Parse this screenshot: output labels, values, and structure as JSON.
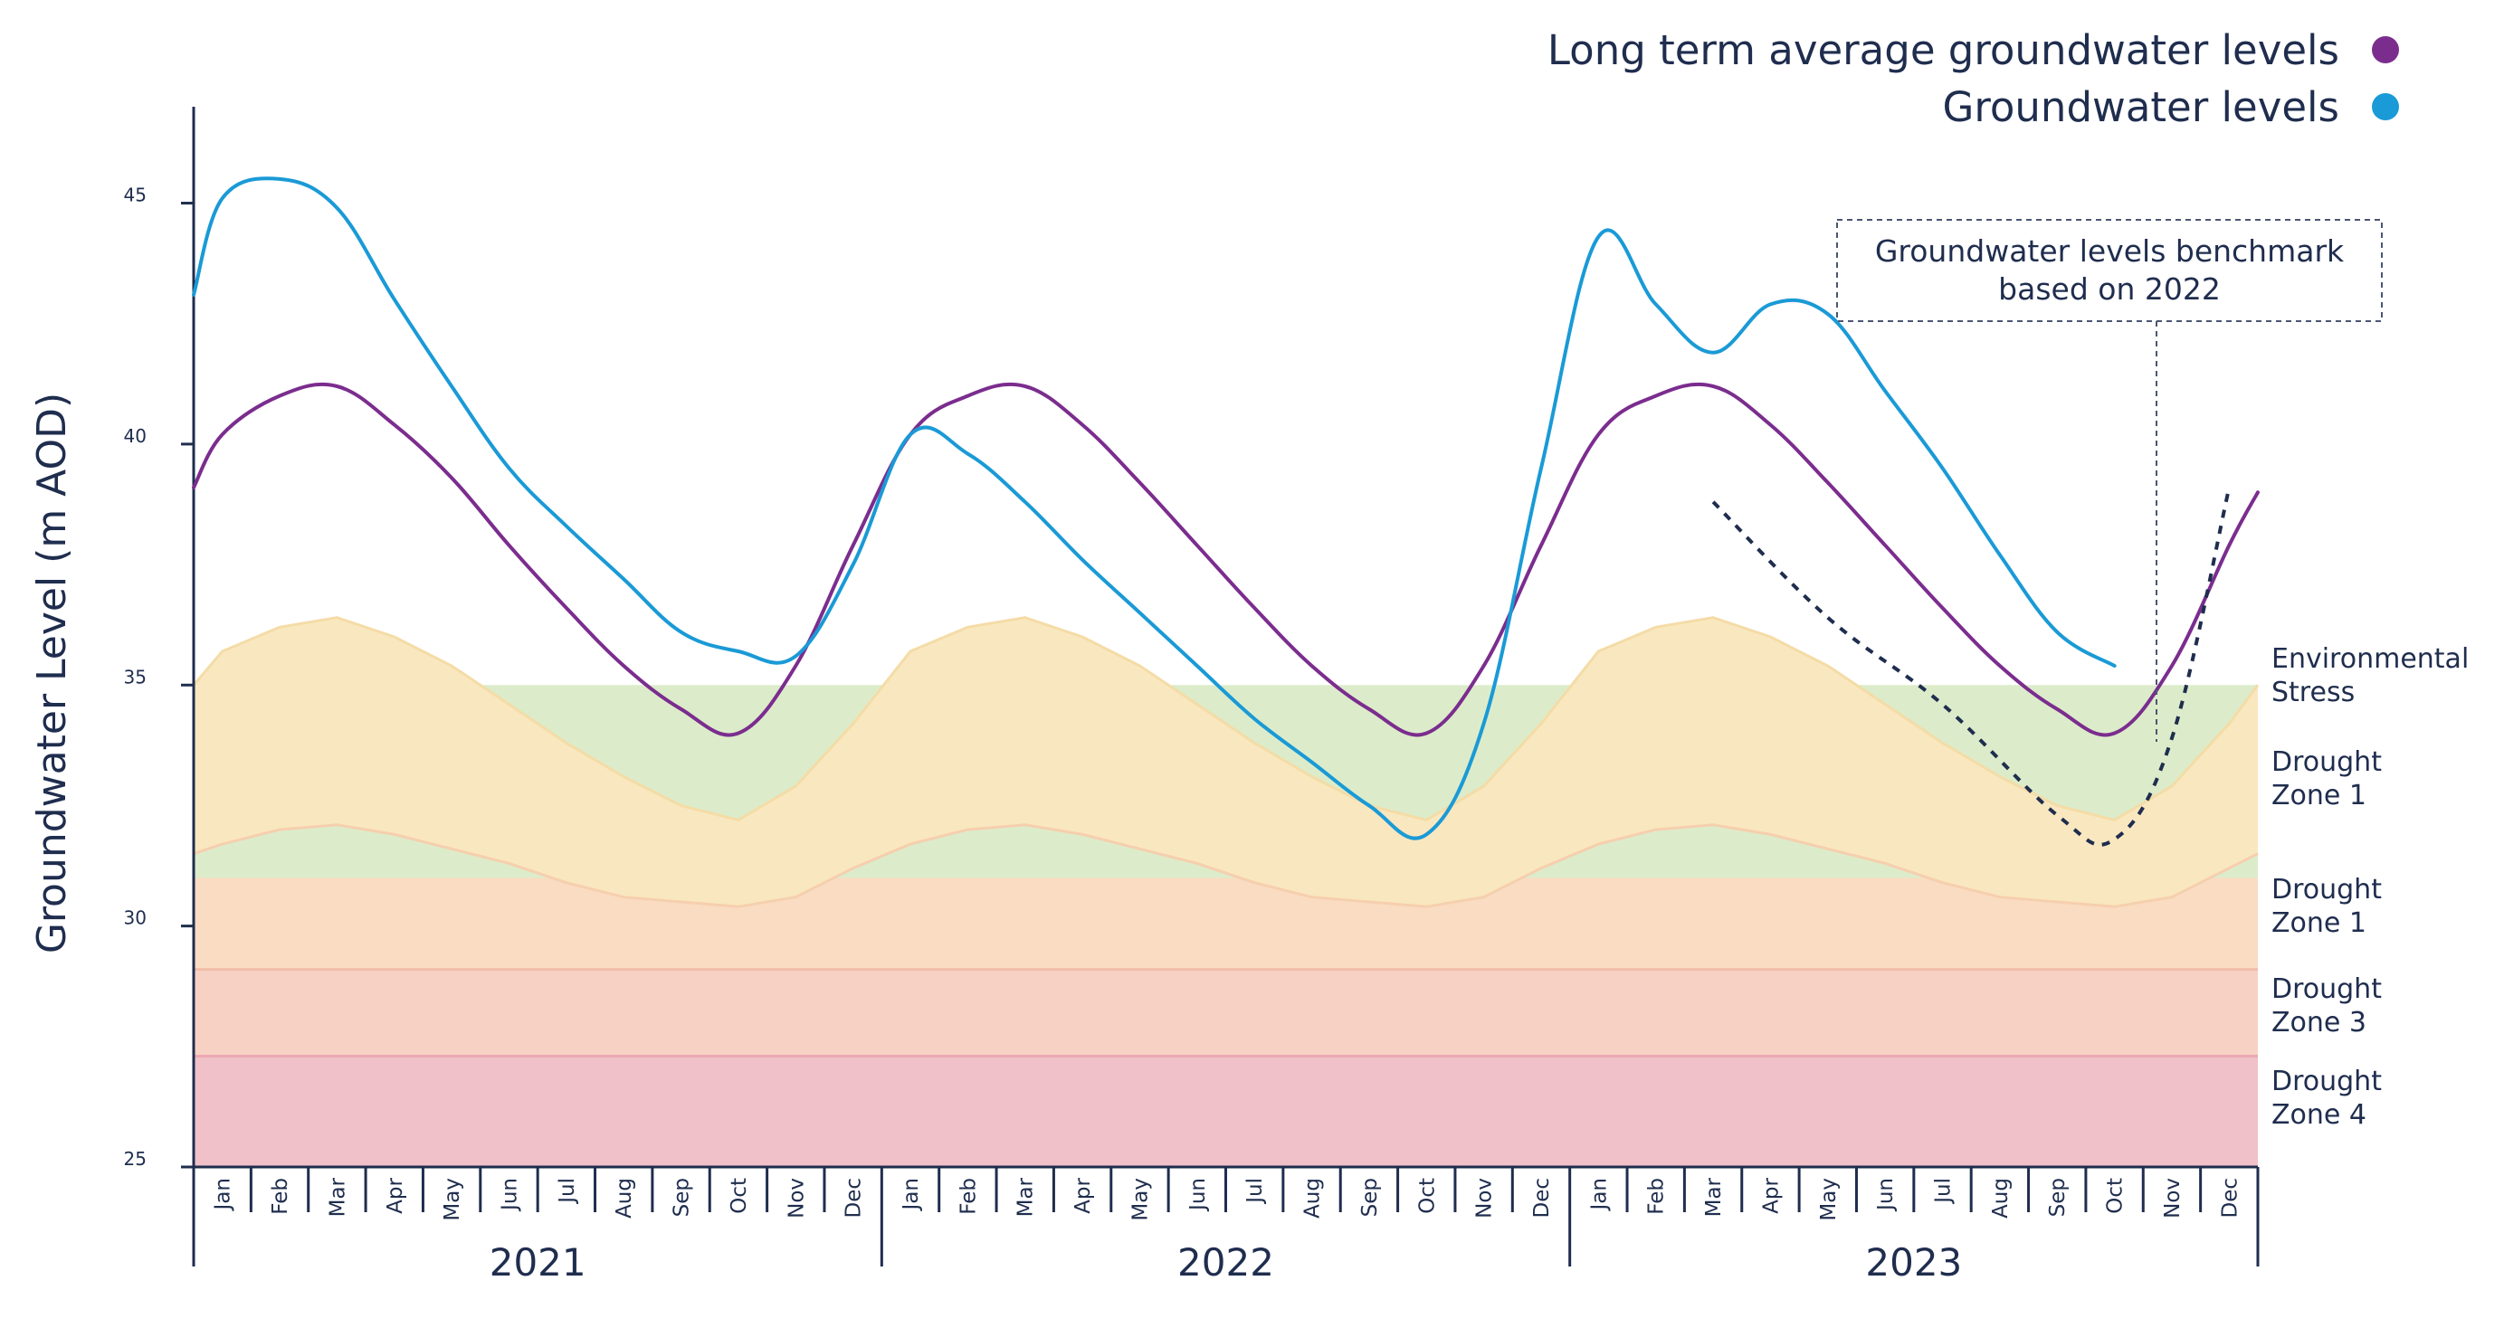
{
  "chart_data": {
    "type": "line",
    "ylabel": "Groundwater Level (m AOD)",
    "ylim": [
      25,
      47
    ],
    "yticks": [
      25,
      30,
      35,
      40,
      45
    ],
    "months": [
      "Jan",
      "Feb",
      "Mar",
      "Apr",
      "May",
      "Jun",
      "Jul",
      "Aug",
      "Sep",
      "Oct",
      "Nov",
      "Dec"
    ],
    "years": [
      "2021",
      "2022",
      "2023"
    ],
    "series": [
      {
        "name": "Long term average groundwater levels",
        "color": "#7b2d8e",
        "values": [
          [
            0,
            39.1
          ],
          [
            0.5,
            40.2
          ],
          [
            1.5,
            41.0
          ],
          [
            2.5,
            41.2
          ],
          [
            3.5,
            40.4
          ],
          [
            4.5,
            39.3
          ],
          [
            5.5,
            37.9
          ],
          [
            6.5,
            36.6
          ],
          [
            7.5,
            35.4
          ],
          [
            8.5,
            34.5
          ],
          [
            9.5,
            34.0
          ],
          [
            10.5,
            35.4
          ],
          [
            11.5,
            37.9
          ],
          [
            12.5,
            40.2
          ],
          [
            13.5,
            41.0
          ],
          [
            14.5,
            41.2
          ],
          [
            15.5,
            40.4
          ],
          [
            16.5,
            39.2
          ],
          [
            17.5,
            37.9
          ],
          [
            18.5,
            36.6
          ],
          [
            19.5,
            35.4
          ],
          [
            20.5,
            34.5
          ],
          [
            21.5,
            34.0
          ],
          [
            22.5,
            35.4
          ],
          [
            23.5,
            37.9
          ],
          [
            24.5,
            40.2
          ],
          [
            25.5,
            41.0
          ],
          [
            26.5,
            41.2
          ],
          [
            27.5,
            40.4
          ],
          [
            28.5,
            39.2
          ],
          [
            29.5,
            37.9
          ],
          [
            30.5,
            36.6
          ],
          [
            31.5,
            35.4
          ],
          [
            32.5,
            34.5
          ],
          [
            33.5,
            34.0
          ],
          [
            34.5,
            35.4
          ],
          [
            35.5,
            37.9
          ],
          [
            36,
            39.0
          ]
        ]
      },
      {
        "name": "Groundwater levels",
        "color": "#1a9ad6",
        "values": [
          [
            0,
            43.1
          ],
          [
            0.5,
            45.1
          ],
          [
            1.5,
            45.5
          ],
          [
            2.5,
            44.9
          ],
          [
            3.5,
            43.0
          ],
          [
            4.5,
            41.2
          ],
          [
            5.5,
            39.5
          ],
          [
            6.5,
            38.3
          ],
          [
            7.5,
            37.2
          ],
          [
            8.5,
            36.1
          ],
          [
            9.5,
            35.7
          ],
          [
            10.5,
            35.6
          ],
          [
            11.5,
            37.5
          ],
          [
            12.5,
            40.2
          ],
          [
            13.5,
            39.8
          ],
          [
            14.5,
            38.8
          ],
          [
            15.5,
            37.6
          ],
          [
            16.5,
            36.5
          ],
          [
            17.5,
            35.4
          ],
          [
            18.5,
            34.3
          ],
          [
            19.5,
            33.4
          ],
          [
            20.5,
            32.5
          ],
          [
            21.5,
            31.9
          ],
          [
            22.5,
            34.2
          ],
          [
            23.5,
            39.5
          ],
          [
            24.5,
            44.3
          ],
          [
            25.5,
            42.9
          ],
          [
            26.5,
            41.9
          ],
          [
            27.5,
            42.9
          ],
          [
            28.5,
            42.7
          ],
          [
            29.5,
            41.1
          ],
          [
            30.5,
            39.5
          ],
          [
            31.5,
            37.7
          ],
          [
            32.5,
            36.1
          ],
          [
            33.5,
            35.4
          ]
        ]
      }
    ],
    "benchmark": {
      "label_lines": [
        "Groundwater levels benchmark",
        "based on 2022"
      ],
      "values": [
        [
          26.5,
          38.8
        ],
        [
          28.5,
          36.4
        ],
        [
          30.5,
          34.6
        ],
        [
          32.5,
          32.3
        ],
        [
          33.5,
          31.8
        ],
        [
          34.5,
          33.9
        ],
        [
          35.5,
          39.1
        ]
      ]
    },
    "zones": {
      "environmental_stress_line": 35,
      "upper_band": [
        [
          0,
          35.0
        ],
        [
          0.5,
          35.7
        ],
        [
          1.5,
          36.2
        ],
        [
          2.5,
          36.4
        ],
        [
          3.5,
          36.0
        ],
        [
          4.5,
          35.4
        ],
        [
          5.5,
          34.6
        ],
        [
          6.5,
          33.8
        ],
        [
          7.5,
          33.1
        ],
        [
          8.5,
          32.5
        ],
        [
          9.5,
          32.2
        ],
        [
          10.5,
          32.9
        ],
        [
          11.5,
          34.2
        ],
        [
          12.5,
          35.7
        ],
        [
          13.5,
          36.2
        ],
        [
          14.5,
          36.4
        ],
        [
          15.5,
          36.0
        ],
        [
          16.5,
          35.4
        ],
        [
          17.5,
          34.6
        ],
        [
          18.5,
          33.8
        ],
        [
          19.5,
          33.1
        ],
        [
          20.5,
          32.5
        ],
        [
          21.5,
          32.2
        ],
        [
          22.5,
          32.9
        ],
        [
          23.5,
          34.2
        ],
        [
          24.5,
          35.7
        ],
        [
          25.5,
          36.2
        ],
        [
          26.5,
          36.4
        ],
        [
          27.5,
          36.0
        ],
        [
          28.5,
          35.4
        ],
        [
          29.5,
          34.6
        ],
        [
          30.5,
          33.8
        ],
        [
          31.5,
          33.1
        ],
        [
          32.5,
          32.5
        ],
        [
          33.5,
          32.2
        ],
        [
          34.5,
          32.9
        ],
        [
          35.5,
          34.2
        ],
        [
          36,
          35.0
        ]
      ],
      "lower_band": [
        [
          0,
          31.5
        ],
        [
          0.5,
          31.7
        ],
        [
          1.5,
          32.0
        ],
        [
          2.5,
          32.1
        ],
        [
          3.5,
          31.9
        ],
        [
          4.5,
          31.6
        ],
        [
          5.5,
          31.3
        ],
        [
          6.5,
          30.9
        ],
        [
          7.5,
          30.6
        ],
        [
          8.5,
          30.5
        ],
        [
          9.5,
          30.4
        ],
        [
          10.5,
          30.6
        ],
        [
          11.5,
          31.2
        ],
        [
          12.5,
          31.7
        ],
        [
          13.5,
          32.0
        ],
        [
          14.5,
          32.1
        ],
        [
          15.5,
          31.9
        ],
        [
          16.5,
          31.6
        ],
        [
          17.5,
          31.3
        ],
        [
          18.5,
          30.9
        ],
        [
          19.5,
          30.6
        ],
        [
          20.5,
          30.5
        ],
        [
          21.5,
          30.4
        ],
        [
          22.5,
          30.6
        ],
        [
          23.5,
          31.2
        ],
        [
          24.5,
          31.7
        ],
        [
          25.5,
          32.0
        ],
        [
          26.5,
          32.1
        ],
        [
          27.5,
          31.9
        ],
        [
          28.5,
          31.6
        ],
        [
          29.5,
          31.3
        ],
        [
          30.5,
          30.9
        ],
        [
          31.5,
          30.6
        ],
        [
          32.5,
          30.5
        ],
        [
          33.5,
          30.4
        ],
        [
          34.5,
          30.6
        ],
        [
          35.5,
          31.2
        ],
        [
          36,
          31.5
        ]
      ],
      "drought_zone_3_top": 29.1,
      "drought_zone_4_top": 27.3,
      "colors": {
        "environmental_stress": "#dcecca",
        "drought_zone_1_upper": "#f9e7bf",
        "drought_zone_1_lower": "#f9dcc2",
        "drought_zone_3": "#f7d2c4",
        "drought_zone_4": "#f0c1c8"
      },
      "labels": [
        {
          "lines": [
            "Environmental",
            "Stress"
          ]
        },
        {
          "lines": [
            "Drought",
            "Zone 1"
          ]
        },
        {
          "lines": [
            "Drought",
            "Zone 1"
          ]
        },
        {
          "lines": [
            "Drought",
            "Zone 3"
          ]
        },
        {
          "lines": [
            "Drought",
            "Zone 4"
          ]
        }
      ]
    },
    "axis_color": "#1f2d4e"
  }
}
